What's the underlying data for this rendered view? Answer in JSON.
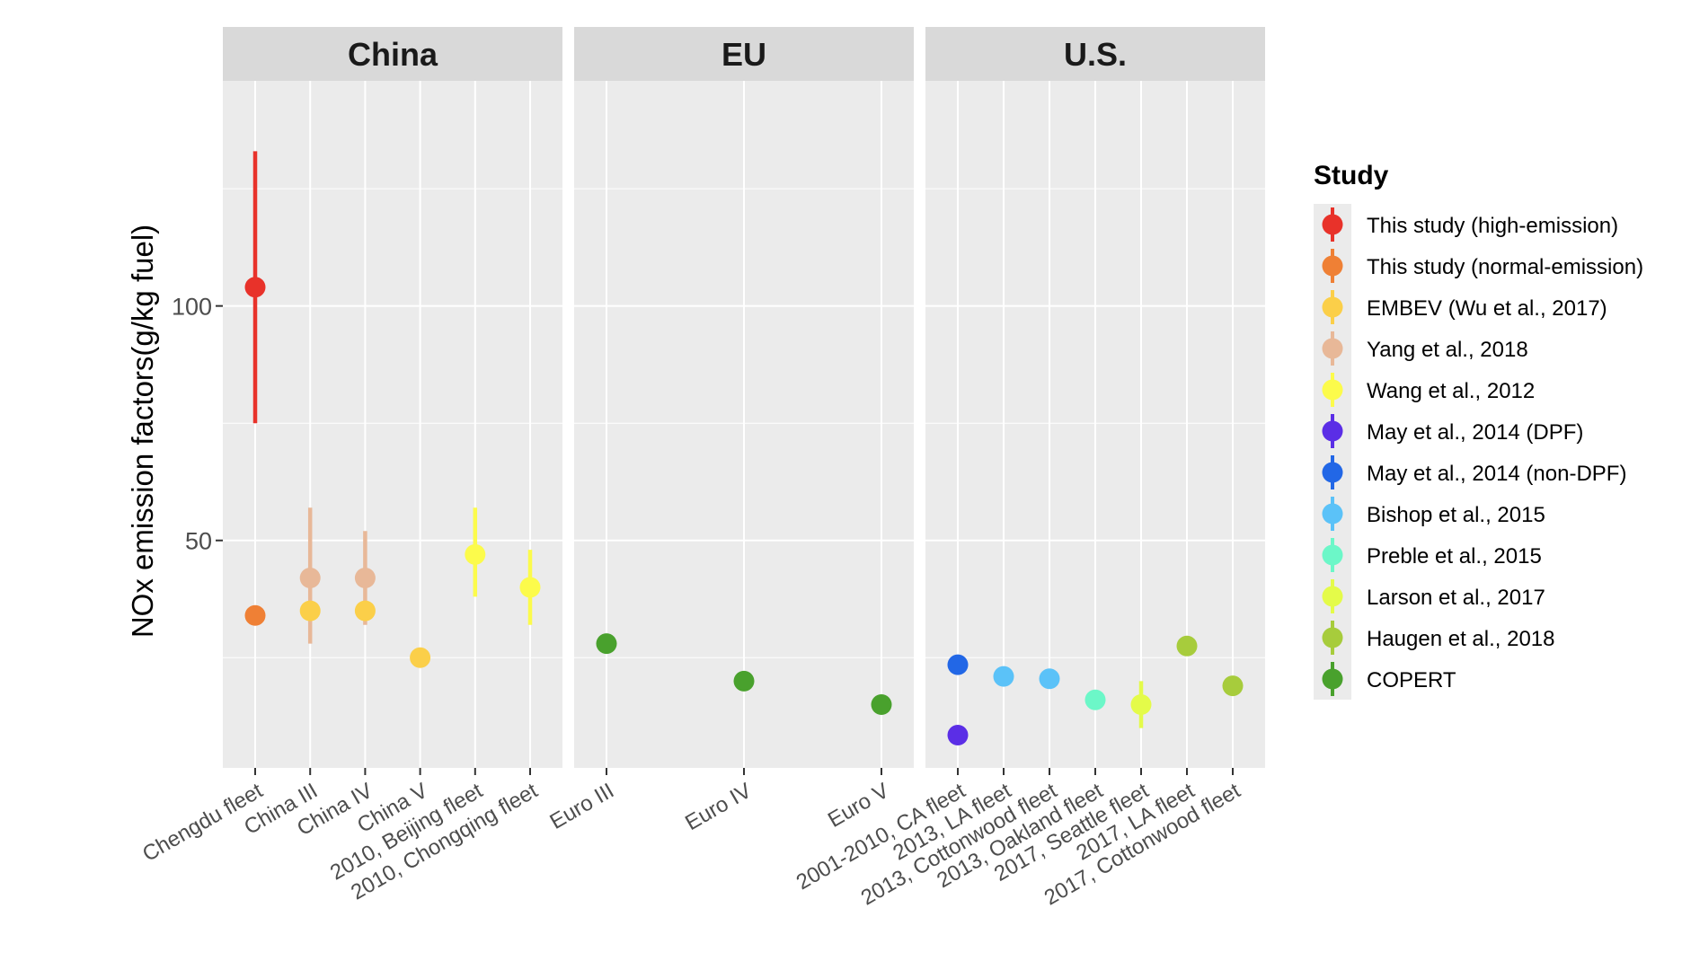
{
  "chart_data": {
    "type": "scatter",
    "ylabel": "NOx emission factors(g/kg fuel)",
    "ylim": [
      1.5,
      148
    ],
    "yticks": [
      50,
      100
    ],
    "grid": true,
    "legend": {
      "title": "Study",
      "placement": "right",
      "entries": [
        {
          "name": "This study (high-emission)",
          "color": "#e8322a"
        },
        {
          "name": "This study (normal-emission)",
          "color": "#ef8035"
        },
        {
          "name": "EMBEV (Wu et al., 2017)",
          "color": "#fbcf49"
        },
        {
          "name": "Yang et al., 2018",
          "color": "#e8b898"
        },
        {
          "name": "Wang et al., 2012",
          "color": "#fcfb4b"
        },
        {
          "name": "May et al., 2014 (DPF)",
          "color": "#5b2ee6"
        },
        {
          "name": "May et al., 2014 (non-DPF)",
          "color": "#2267e6"
        },
        {
          "name": "Bishop et al., 2015",
          "color": "#5bc2f8"
        },
        {
          "name": "Preble et al., 2015",
          "color": "#6cf7c8"
        },
        {
          "name": "Larson et al., 2017",
          "color": "#e4fb49"
        },
        {
          "name": "Haugen et al., 2018",
          "color": "#a7cc3c"
        },
        {
          "name": "COPERT",
          "color": "#49a12d"
        }
      ]
    },
    "panels": [
      {
        "name": "China",
        "categories": [
          "Chengdu fleet",
          "China III",
          "China IV",
          "China V",
          "2010, Beijing fleet",
          "2010, Chongqing fleet"
        ],
        "points": [
          {
            "x": "Chengdu fleet",
            "y": 104,
            "ymin": 75,
            "ymax": 133,
            "study": "This study (high-emission)"
          },
          {
            "x": "Chengdu fleet",
            "y": 34,
            "ymin": 34,
            "ymax": 34,
            "study": "This study (normal-emission)"
          },
          {
            "x": "China III",
            "y": 42,
            "ymin": 28,
            "ymax": 57,
            "study": "Yang et al., 2018"
          },
          {
            "x": "China III",
            "y": 35,
            "ymin": 35,
            "ymax": 35,
            "study": "EMBEV (Wu et al., 2017)"
          },
          {
            "x": "China IV",
            "y": 42,
            "ymin": 32,
            "ymax": 52,
            "study": "Yang et al., 2018"
          },
          {
            "x": "China IV",
            "y": 35,
            "ymin": 35,
            "ymax": 35,
            "study": "EMBEV (Wu et al., 2017)"
          },
          {
            "x": "China V",
            "y": 25,
            "ymin": 25,
            "ymax": 25,
            "study": "EMBEV (Wu et al., 2017)"
          },
          {
            "x": "2010, Beijing fleet",
            "y": 47,
            "ymin": 38,
            "ymax": 57,
            "study": "Wang et al., 2012"
          },
          {
            "x": "2010, Chongqing fleet",
            "y": 40,
            "ymin": 32,
            "ymax": 48,
            "study": "Wang et al., 2012"
          }
        ]
      },
      {
        "name": "EU",
        "categories": [
          "Euro III",
          "Euro IV",
          "Euro V"
        ],
        "points": [
          {
            "x": "Euro III",
            "y": 28,
            "ymin": 28,
            "ymax": 28,
            "study": "COPERT"
          },
          {
            "x": "Euro IV",
            "y": 20,
            "ymin": 20,
            "ymax": 20,
            "study": "COPERT"
          },
          {
            "x": "Euro V",
            "y": 15,
            "ymin": 15,
            "ymax": 15,
            "study": "COPERT"
          }
        ]
      },
      {
        "name": "U.S.",
        "categories": [
          "2001-2010, CA fleet",
          "2013, LA fleet",
          "2013, Cottonwood fleet",
          "2013, Oakland fleet",
          "2017, Seattle fleet",
          "2017, LA fleet",
          "2017, Cottonwood fleet"
        ],
        "points": [
          {
            "x": "2001-2010, CA fleet",
            "y": 23.5,
            "ymin": 23.5,
            "ymax": 23.5,
            "study": "May et al., 2014 (non-DPF)"
          },
          {
            "x": "2001-2010, CA fleet",
            "y": 8.5,
            "ymin": 8.5,
            "ymax": 8.5,
            "study": "May et al., 2014 (DPF)"
          },
          {
            "x": "2013, LA fleet",
            "y": 21,
            "ymin": 21,
            "ymax": 21,
            "study": "Bishop et al., 2015"
          },
          {
            "x": "2013, Cottonwood fleet",
            "y": 20.5,
            "ymin": 20.5,
            "ymax": 20.5,
            "study": "Bishop et al., 2015"
          },
          {
            "x": "2013, Oakland fleet",
            "y": 16,
            "ymin": 16,
            "ymax": 16,
            "study": "Preble et al., 2015"
          },
          {
            "x": "2017, Seattle fleet",
            "y": 15,
            "ymin": 10,
            "ymax": 20,
            "study": "Larson et al., 2017"
          },
          {
            "x": "2017, LA fleet",
            "y": 27.5,
            "ymin": 27.5,
            "ymax": 27.5,
            "study": "Haugen et al., 2018"
          },
          {
            "x": "2017, Cottonwood fleet",
            "y": 19,
            "ymin": 19,
            "ymax": 19,
            "study": "Haugen et al., 2018"
          }
        ]
      }
    ]
  }
}
